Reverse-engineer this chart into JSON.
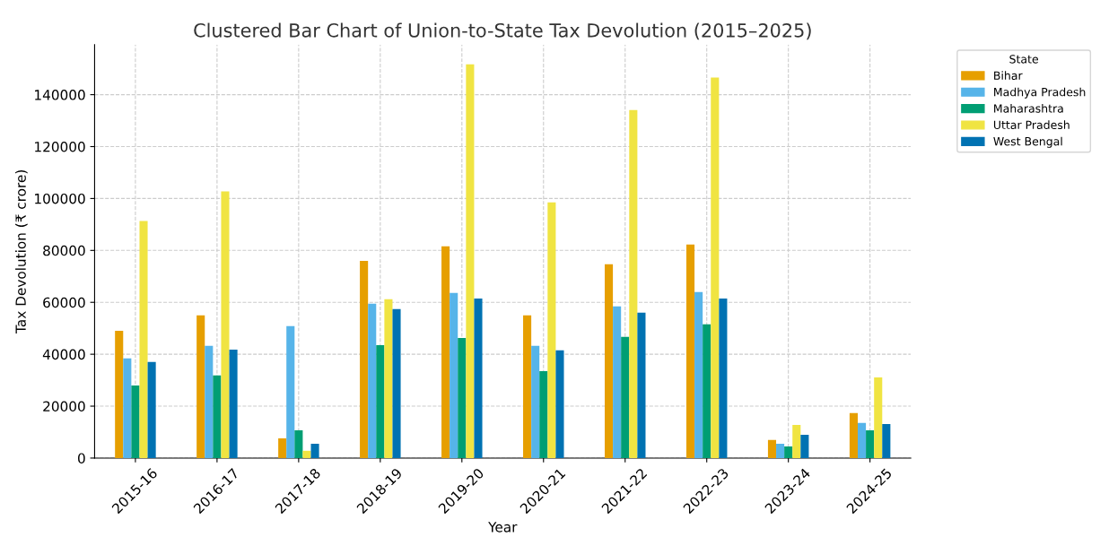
{
  "chart_data": {
    "type": "bar",
    "title": "Clustered Bar Chart of Union-to-State Tax Devolution (2015–2025)",
    "xlabel": "Year",
    "ylabel": "Tax Devolution (₹ crore)",
    "legend_title": "State",
    "categories": [
      "2015-16",
      "2016-17",
      "2017-18",
      "2018-19",
      "2019-20",
      "2020-21",
      "2021-22",
      "2022-23",
      "2023-24",
      "2024-25"
    ],
    "series": [
      {
        "name": "Bihar",
        "color": "#e69f00",
        "values": [
          49000,
          55000,
          7600,
          76000,
          81600,
          55000,
          74700,
          82300,
          7000,
          17300
        ]
      },
      {
        "name": "Madhya Pradesh",
        "color": "#56b4e9",
        "values": [
          38400,
          43200,
          50800,
          59500,
          63600,
          43200,
          58400,
          64000,
          5500,
          13500
        ]
      },
      {
        "name": "Maharashtra",
        "color": "#009e73",
        "values": [
          28000,
          31800,
          10700,
          43500,
          46300,
          33500,
          46700,
          51500,
          4500,
          10700
        ]
      },
      {
        "name": "Uttar Pradesh",
        "color": "#f0e442",
        "values": [
          91300,
          102700,
          2800,
          61200,
          151700,
          98500,
          134100,
          146600,
          12800,
          31100
        ]
      },
      {
        "name": "West Bengal",
        "color": "#0072b2",
        "values": [
          37000,
          41800,
          5500,
          57400,
          61500,
          41500,
          56000,
          61500,
          9000,
          13100
        ]
      }
    ],
    "ylim": [
      0,
      159300
    ],
    "yticks": [
      0,
      20000,
      40000,
      60000,
      80000,
      100000,
      120000,
      140000
    ],
    "grid": true,
    "legend": "top right"
  }
}
